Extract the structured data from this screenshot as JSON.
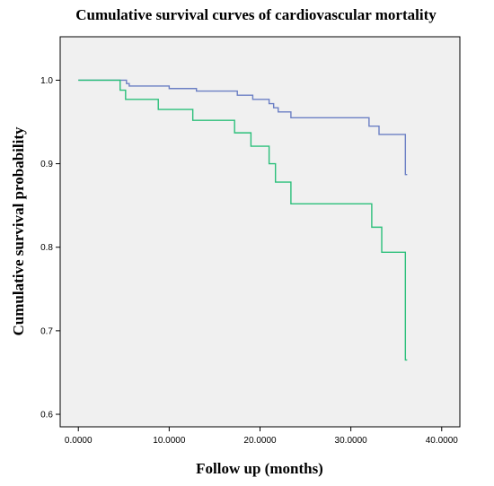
{
  "chart_data": {
    "type": "line",
    "step": true,
    "title": "Cumulative survival curves of cardiovascular mortality",
    "xlabel": "Follow up (months)",
    "ylabel": "Cumulative survival probability",
    "xlim": [
      -2,
      42
    ],
    "ylim": [
      0.585,
      1.052
    ],
    "x_ticks": [
      0,
      10,
      20,
      30,
      40
    ],
    "x_tick_labels": [
      "0.0000",
      "10.0000",
      "20.0000",
      "30.0000",
      "40.0000"
    ],
    "y_ticks": [
      0.6,
      0.7,
      0.8,
      0.9,
      1.0
    ],
    "y_tick_labels": [
      "0.6",
      "0.7",
      "0.8",
      "0.9",
      "1.0"
    ],
    "grid": false,
    "plot_background": "#f0f0f0",
    "series": [
      {
        "color": "#6b7fc4",
        "end_x": 36.2,
        "steps": [
          {
            "x": 0,
            "y": 1.0
          },
          {
            "x": 5.3,
            "y": 0.996
          },
          {
            "x": 5.6,
            "y": 0.993
          },
          {
            "x": 10.0,
            "y": 0.99
          },
          {
            "x": 13.0,
            "y": 0.987
          },
          {
            "x": 17.5,
            "y": 0.982
          },
          {
            "x": 19.2,
            "y": 0.977
          },
          {
            "x": 21.0,
            "y": 0.972
          },
          {
            "x": 21.5,
            "y": 0.967
          },
          {
            "x": 22.0,
            "y": 0.962
          },
          {
            "x": 23.4,
            "y": 0.955
          },
          {
            "x": 32.0,
            "y": 0.945
          },
          {
            "x": 33.1,
            "y": 0.935
          },
          {
            "x": 36.0,
            "y": 0.887
          }
        ]
      },
      {
        "color": "#2bbf7a",
        "end_x": 36.2,
        "steps": [
          {
            "x": 0,
            "y": 1.0
          },
          {
            "x": 4.6,
            "y": 0.988
          },
          {
            "x": 5.2,
            "y": 0.977
          },
          {
            "x": 8.8,
            "y": 0.965
          },
          {
            "x": 12.6,
            "y": 0.952
          },
          {
            "x": 17.2,
            "y": 0.937
          },
          {
            "x": 19.0,
            "y": 0.921
          },
          {
            "x": 21.0,
            "y": 0.9
          },
          {
            "x": 21.7,
            "y": 0.878
          },
          {
            "x": 23.4,
            "y": 0.852
          },
          {
            "x": 32.3,
            "y": 0.824
          },
          {
            "x": 33.4,
            "y": 0.794
          },
          {
            "x": 36.0,
            "y": 0.665
          }
        ]
      }
    ]
  }
}
